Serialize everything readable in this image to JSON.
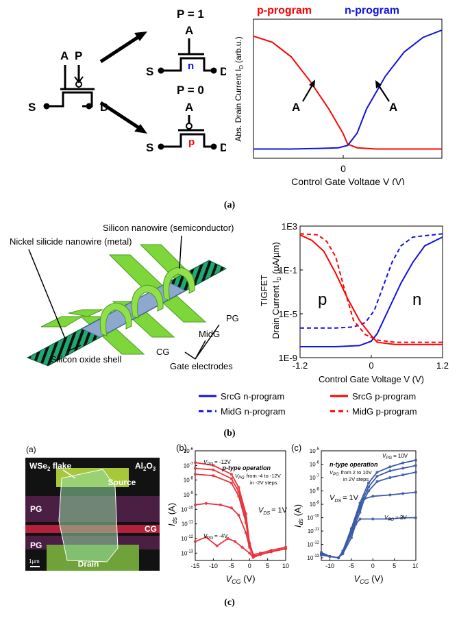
{
  "captions": {
    "a": "(a)",
    "b": "(b)",
    "c": "(c)"
  },
  "panel_a": {
    "symbol": {
      "gate_a": "A",
      "gate_p": "P",
      "source": "S",
      "drain": "D"
    },
    "state_p1": {
      "label": "P = 1",
      "gate": "A",
      "channel": "n",
      "source": "S",
      "drain": "D"
    },
    "state_p0": {
      "label": "P = 0",
      "gate": "A",
      "channel": "p",
      "source": "S",
      "drain": "D"
    },
    "colors": {
      "p": "#ff0000",
      "n": "#1010e0"
    },
    "chart_data": {
      "type": "line",
      "legend": [
        "p-program",
        "n-program"
      ],
      "ylabel_main": "Abs. Drain Current I",
      "ylabel_sub": "D",
      "ylabel_unit": "(arb.u.)",
      "xlabel": "Control Gate Voltage V  (V)",
      "xtick_zero": "0",
      "annotation_left": "A",
      "annotation_right": "A",
      "series": [
        {
          "name": "p-program",
          "color": "#ff0000",
          "x": [
            -1.0,
            -0.8,
            -0.6,
            -0.4,
            -0.2,
            -0.05,
            0.0,
            0.1,
            0.3,
            0.6,
            1.0
          ],
          "y": [
            0.95,
            0.9,
            0.78,
            0.58,
            0.35,
            0.15,
            0.06,
            0.03,
            0.02,
            0.02,
            0.02
          ]
        },
        {
          "name": "n-program",
          "color": "#1010e0",
          "x": [
            -1.0,
            -0.6,
            -0.3,
            -0.1,
            0.0,
            0.1,
            0.2,
            0.4,
            0.6,
            0.8,
            1.0
          ],
          "y": [
            0.02,
            0.02,
            0.025,
            0.03,
            0.05,
            0.15,
            0.35,
            0.62,
            0.82,
            0.94,
            1.0
          ]
        }
      ]
    }
  },
  "panel_b": {
    "labels": {
      "nanowire_si": "Silicon nanowire (semiconductor)",
      "nanowire_ni": "Nickel silicide nanowire (metal)",
      "oxide": "Silicon oxide shell",
      "cg": "CG",
      "midg": "MidG",
      "pg": "PG",
      "gate_electrodes": "Gate electrodes"
    },
    "chart_data": {
      "type": "line",
      "ylabel_top": "TIGFET",
      "ylabel_main": "Drain Current I",
      "ylabel_sub": "D",
      "ylabel_unit": " (µA/µm)",
      "xlabel": "Control Gate Voltage V  (V)",
      "xticks": [
        "-1.2",
        "0",
        "1.2"
      ],
      "yticks": [
        "1E3",
        "1E-1",
        "1E-5",
        "1E-9"
      ],
      "region_p": "p",
      "region_n": "n",
      "xlim": [
        -1.2,
        1.2
      ],
      "ylim_log10": [
        -9,
        3
      ],
      "series": [
        {
          "name": "SrcG n-program",
          "color": "#1010e0",
          "dash": false,
          "x": [
            -1.2,
            -0.6,
            -0.2,
            0.0,
            0.1,
            0.3,
            0.5,
            0.7,
            0.9,
            1.2
          ],
          "y_log10": [
            -8.0,
            -8.0,
            -7.9,
            -7.5,
            -6.8,
            -4.5,
            -2.2,
            -0.3,
            1.2,
            2.0
          ]
        },
        {
          "name": "MidG n-program",
          "color": "#1010e0",
          "dash": true,
          "x": [
            -1.2,
            -0.6,
            -0.3,
            -0.1,
            0.05,
            0.2,
            0.35,
            0.5,
            0.7,
            1.2
          ],
          "y_log10": [
            -6.3,
            -6.3,
            -6.2,
            -5.8,
            -4.7,
            -2.5,
            -0.3,
            1.2,
            2.0,
            2.3
          ]
        },
        {
          "name": "SrcG p-program",
          "color": "#ff0000",
          "dash": false,
          "x": [
            -1.2,
            -1.0,
            -0.8,
            -0.6,
            -0.4,
            -0.2,
            0.0,
            0.1,
            0.4,
            1.2
          ],
          "y_log10": [
            2.2,
            1.7,
            0.7,
            -1.3,
            -3.6,
            -5.6,
            -7.0,
            -7.6,
            -7.8,
            -7.8
          ]
        },
        {
          "name": "MidG p-program",
          "color": "#ff0000",
          "dash": true,
          "x": [
            -1.2,
            -0.9,
            -0.75,
            -0.6,
            -0.45,
            -0.3,
            -0.1,
            0.1,
            0.4,
            1.2
          ],
          "y_log10": [
            2.3,
            2.2,
            1.6,
            0.2,
            -2.8,
            -5.6,
            -6.9,
            -7.4,
            -7.6,
            -7.6
          ]
        }
      ]
    },
    "legend": [
      "SrcG n-program",
      "SrcG p-program",
      "MidG n-program",
      "MidG p-program"
    ]
  },
  "panel_c": {
    "micrograph": {
      "label": "(a)",
      "flake": "WSe",
      "flake_sub": "2",
      "flake_suffix": " flake",
      "al2o3_a": "Al",
      "al2o3_s1": "2",
      "al2o3_b": "O",
      "al2o3_s2": "3",
      "source": "Source",
      "pg_top": "PG",
      "cg": "CG",
      "pg_bottom": "PG",
      "drain": "Drain",
      "scale": "1µm"
    },
    "chart_b": {
      "label": "(b)",
      "type": "line",
      "xlabel_main": "V",
      "xlabel_sub": "CG",
      "xlabel_unit": " (V)",
      "ylabel_main": "I",
      "ylabel_sub": "ds",
      "ylabel_unit": " (A)",
      "xticks": [
        "-15",
        "-10",
        "-5",
        "0",
        "5",
        "10"
      ],
      "ytick_exps": [
        "-6",
        "-7",
        "-8",
        "-9",
        "-10",
        "-11",
        "-12",
        "-13"
      ],
      "title": "p-type operation",
      "note_line1": "from -4 to -12V",
      "note_line2": "in -2V steps",
      "vpg_top": "= -12V",
      "vpg_bottom": "= -4V",
      "vds": "= 1V",
      "color": "#e8333a",
      "xlim": [
        -15,
        10
      ],
      "ylim_log10": [
        -13.5,
        -6
      ],
      "series": [
        {
          "name": "VPG -12V",
          "x": [
            -15,
            -10,
            -5,
            -3,
            -1,
            0,
            1,
            3,
            6,
            10
          ],
          "y_log10": [
            -6.8,
            -7.0,
            -7.6,
            -8.5,
            -10.3,
            -12.3,
            -13.1,
            -13.0,
            -12.8,
            -12.6
          ]
        },
        {
          "name": "VPG -10V",
          "x": [
            -15,
            -10,
            -5,
            -3,
            -1,
            0,
            1,
            3,
            6,
            10
          ],
          "y_log10": [
            -7.2,
            -7.3,
            -7.9,
            -8.8,
            -10.6,
            -12.4,
            -13.2,
            -13.1,
            -12.9,
            -12.7
          ]
        },
        {
          "name": "VPG -8V",
          "x": [
            -15,
            -10,
            -5,
            -3,
            -1,
            0,
            1,
            3,
            6,
            10
          ],
          "y_log10": [
            -7.6,
            -7.7,
            -8.2,
            -9.1,
            -10.9,
            -12.5,
            -13.2,
            -13.1,
            -12.9,
            -12.7
          ]
        },
        {
          "name": "VPG -6V",
          "x": [
            -15,
            -12,
            -8,
            -5,
            -3,
            -1,
            0,
            1,
            3,
            6,
            10
          ],
          "y_log10": [
            -9.7,
            -9.6,
            -9.7,
            -9.9,
            -10.4,
            -11.6,
            -12.6,
            -13.2,
            -13.1,
            -12.9,
            -12.7
          ]
        },
        {
          "name": "VPG -4V",
          "x": [
            -15,
            -12,
            -9,
            -6,
            -4,
            -2,
            0,
            1,
            3,
            6,
            10
          ],
          "y_log10": [
            -12.2,
            -11.9,
            -12.5,
            -12.0,
            -12.2,
            -12.6,
            -13.0,
            -13.3,
            -13.1,
            -12.9,
            -12.7
          ]
        }
      ]
    },
    "chart_c": {
      "label": "(c)",
      "type": "line",
      "xlabel_main": "V",
      "xlabel_sub": "CG",
      "xlabel_unit": " (V)",
      "ylabel_main": "I",
      "ylabel_sub": "ds",
      "ylabel_unit": " (A)",
      "xticks": [
        "-10",
        "-5",
        "0",
        "5",
        "10"
      ],
      "ytick_exps": [
        "-5",
        "-6",
        "-7",
        "-8",
        "-9",
        "-10",
        "-11",
        "-12",
        "-13"
      ],
      "title": "n-type operation",
      "note_line1": "from 2 to 10V",
      "note_line2": "in 2V steps",
      "vpg_top": "= 10V",
      "vpg_bottom": "= 2V",
      "vds": "= 1V",
      "color": "#3a5aa8",
      "xlim": [
        -12,
        10
      ],
      "ylim_log10": [
        -13.2,
        -5
      ],
      "series": [
        {
          "name": "VPG 10V",
          "x": [
            -12,
            -10,
            -8,
            -7,
            -5,
            -3,
            -1,
            1,
            4,
            7,
            10
          ],
          "y_log10": [
            -12.6,
            -12.9,
            -13.0,
            -12.5,
            -10.8,
            -8.9,
            -7.4,
            -6.6,
            -6.2,
            -5.9,
            -5.7
          ]
        },
        {
          "name": "VPG 8V",
          "x": [
            -12,
            -10,
            -8,
            -7,
            -5,
            -3,
            -1,
            1,
            4,
            7,
            10
          ],
          "y_log10": [
            -12.7,
            -12.9,
            -13.0,
            -12.5,
            -10.9,
            -9.1,
            -7.7,
            -6.9,
            -6.5,
            -6.3,
            -6.1
          ]
        },
        {
          "name": "VPG 6V",
          "x": [
            -12,
            -10,
            -8,
            -7,
            -5,
            -3,
            -1,
            1,
            4,
            7,
            10
          ],
          "y_log10": [
            -12.7,
            -12.9,
            -13.0,
            -12.6,
            -11.0,
            -9.3,
            -8.0,
            -7.3,
            -7.0,
            -6.8,
            -6.6
          ]
        },
        {
          "name": "VPG 4V",
          "x": [
            -12,
            -10,
            -8,
            -7,
            -5,
            -3,
            -2,
            0,
            4,
            7,
            10
          ],
          "y_log10": [
            -12.8,
            -12.9,
            -13.0,
            -12.6,
            -11.2,
            -9.6,
            -8.6,
            -8.4,
            -8.3,
            -8.2,
            -8.1
          ]
        },
        {
          "name": "VPG 2V",
          "x": [
            -12,
            -10,
            -8,
            -7,
            -5,
            -4,
            -3,
            0,
            4,
            7,
            10
          ],
          "y_log10": [
            -12.8,
            -12.9,
            -13.0,
            -12.7,
            -11.5,
            -10.5,
            -10.1,
            -10.1,
            -10.1,
            -10.0,
            -10.0
          ]
        }
      ]
    }
  }
}
